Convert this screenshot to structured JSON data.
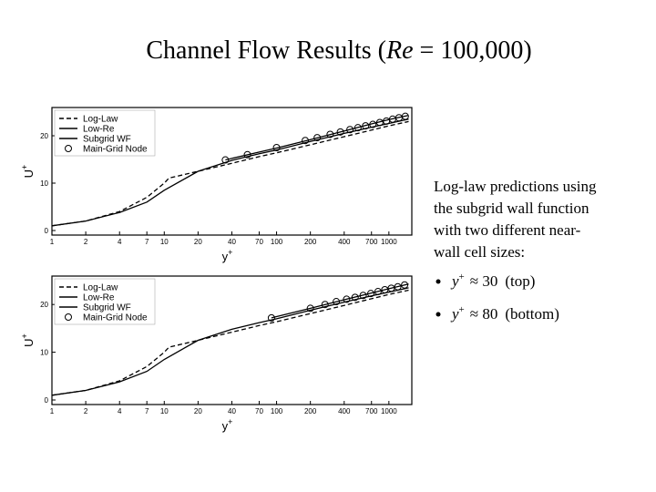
{
  "title": {
    "before": "Channel Flow Results (",
    "italic": "Re",
    "after": " = 100,000)"
  },
  "text": {
    "lines": [
      "Log-law predictions using",
      "the subgrid wall function",
      "with two different near-",
      "wall cell sizes:"
    ],
    "bullets": [
      {
        "var": "y",
        "sup": "+",
        "approx": "≈ 30",
        "note": "(top)"
      },
      {
        "var": "y",
        "sup": "+",
        "approx": "≈ 80",
        "note": "(bottom)"
      }
    ]
  },
  "chart_data": [
    {
      "type": "line",
      "xlabel": "y",
      "xlabel_sup": "+",
      "ylabel": "U",
      "ylabel_sup": "+",
      "log_x": true,
      "legend": "upper left",
      "xlim": [
        1,
        1600
      ],
      "ylim": [
        0,
        25
      ],
      "xticks": [
        1,
        2,
        4,
        7,
        10,
        20,
        40,
        70,
        100,
        200,
        400,
        700,
        1000
      ],
      "yticks": [
        0,
        10,
        20
      ],
      "series": [
        {
          "name": "Log-Law",
          "style": "dashed",
          "color": "#000000",
          "x": [
            1,
            2,
            4,
            7,
            10,
            11,
            20,
            40,
            70,
            100,
            200,
            400,
            700,
            1000,
            1500
          ],
          "values": [
            1,
            2,
            4,
            7,
            10,
            11.05,
            12.5,
            14.2,
            15.6,
            16.4,
            18.1,
            19.8,
            21.2,
            22.1,
            23.0
          ]
        },
        {
          "name": "Low-Re",
          "style": "solid",
          "color": "#000000",
          "x": [
            1,
            2,
            4,
            7,
            10,
            20,
            40,
            70,
            100,
            200,
            400,
            700,
            1000,
            1500
          ],
          "values": [
            1,
            2,
            3.8,
            6,
            8.5,
            12.5,
            14.8,
            16.2,
            17,
            18.8,
            20.5,
            21.8,
            22.6,
            23.5
          ]
        },
        {
          "name": "Subgrid WF",
          "style": "solid",
          "color": "#000000",
          "x": [
            35,
            100,
            200,
            400,
            700,
            1000,
            1500
          ],
          "values": [
            14.9,
            17.4,
            19.2,
            21,
            22.5,
            23.4,
            24.3
          ]
        },
        {
          "name": "Main-Grid Node",
          "style": "markers",
          "color": "#000000",
          "x": [
            35,
            55,
            100,
            180,
            230,
            300,
            370,
            450,
            530,
            620,
            720,
            830,
            950,
            1080,
            1230,
            1400
          ],
          "values": [
            14.9,
            16.0,
            17.5,
            19.0,
            19.6,
            20.3,
            20.8,
            21.3,
            21.7,
            22.1,
            22.4,
            22.8,
            23.1,
            23.5,
            23.8,
            24.1
          ]
        }
      ]
    },
    {
      "type": "line",
      "xlabel": "y",
      "xlabel_sup": "+",
      "ylabel": "U",
      "ylabel_sup": "+",
      "log_x": true,
      "legend": "upper left",
      "xlim": [
        1,
        1600
      ],
      "ylim": [
        0,
        25
      ],
      "xticks": [
        1,
        2,
        4,
        7,
        10,
        20,
        40,
        70,
        100,
        200,
        400,
        700,
        1000
      ],
      "yticks": [
        0,
        10,
        20
      ],
      "series": [
        {
          "name": "Log-Law",
          "style": "dashed",
          "color": "#000000",
          "x": [
            1,
            2,
            4,
            7,
            10,
            11,
            20,
            40,
            70,
            100,
            200,
            400,
            700,
            1000,
            1500
          ],
          "values": [
            1,
            2,
            4,
            7,
            10,
            11.05,
            12.5,
            14.2,
            15.6,
            16.4,
            18.1,
            19.8,
            21.2,
            22.1,
            23.0
          ]
        },
        {
          "name": "Low-Re",
          "style": "solid",
          "color": "#000000",
          "x": [
            1,
            2,
            4,
            7,
            10,
            20,
            40,
            70,
            100,
            200,
            400,
            700,
            1000,
            1500
          ],
          "values": [
            1,
            2,
            3.8,
            6,
            8.5,
            12.5,
            14.8,
            16.2,
            17,
            18.8,
            20.5,
            21.8,
            22.6,
            23.5
          ]
        },
        {
          "name": "Subgrid WF",
          "style": "solid",
          "color": "#000000",
          "x": [
            90,
            200,
            400,
            700,
            1000,
            1500
          ],
          "values": [
            17.2,
            19.2,
            21.0,
            22.4,
            23.3,
            24.3
          ]
        },
        {
          "name": "Main-Grid Node",
          "style": "markers",
          "color": "#000000",
          "x": [
            90,
            200,
            270,
            340,
            420,
            500,
            590,
            690,
            800,
            920,
            1050,
            1200,
            1380
          ],
          "values": [
            17.2,
            19.2,
            20.0,
            20.6,
            21.1,
            21.5,
            21.9,
            22.3,
            22.7,
            23.1,
            23.4,
            23.7,
            24.1
          ]
        }
      ]
    }
  ]
}
